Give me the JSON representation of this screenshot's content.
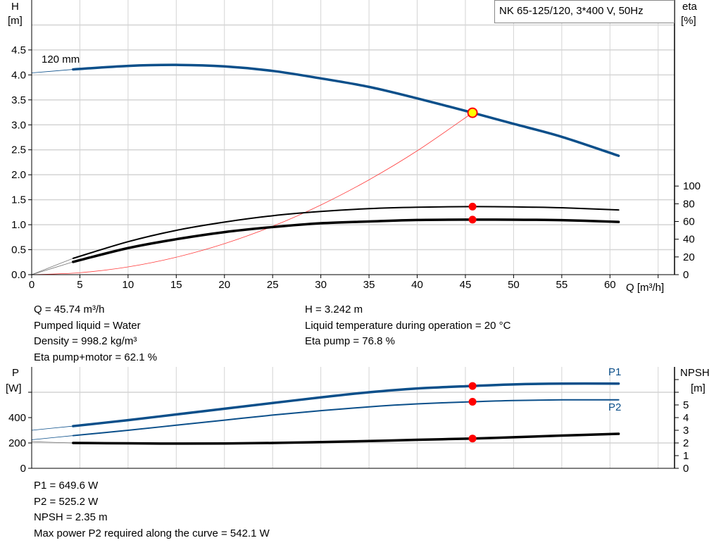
{
  "title": "NK 65-125/120, 3*400 V, 50Hz",
  "curve_label": "120 mm",
  "operating_point_info": {
    "left": [
      "Q = 45.74 m³/h",
      "Pumped liquid = Water",
      "Density = 998.2 kg/m³",
      "Eta pump+motor = 62.1 %"
    ],
    "right": [
      "H = 3.242 m",
      "Liquid temperature during operation = 20 °C",
      "Eta pump = 76.8 %"
    ]
  },
  "power_info": [
    "P1 = 649.6 W",
    "P2 = 525.2 W",
    "NPSH = 2.35 m",
    "Max power P2 required along the curve = 542.1 W"
  ],
  "colors": {
    "head": "#0b4f8a",
    "efficiency": "#000000",
    "system_curve": "#ff3b3b",
    "duty_point": "#ff0000",
    "duty_point_fill_head": "#ffff00",
    "grid": "#d4d4d4"
  },
  "chart_data": [
    {
      "type": "line",
      "title": "NK 65-125/120, 3*400 V, 50Hz",
      "xlabel": "Q [m³/h]",
      "ylabel": "H\n[m]",
      "ylabel_left_lines": [
        "H",
        "[m]"
      ],
      "ylabel_right_lines": [
        "eta",
        "[%]"
      ],
      "xlim": [
        0,
        66.7
      ],
      "ylim": [
        0,
        5.5
      ],
      "ylim_right": [
        0,
        310
      ],
      "xticks": [
        "0",
        "5",
        "10",
        "15",
        "20",
        "25",
        "30",
        "35",
        "40",
        "45",
        "50",
        "55",
        "60"
      ],
      "yticks": [
        "0.0",
        "0.5",
        "1.0",
        "1.5",
        "2.0",
        "2.5",
        "3.0",
        "3.5",
        "4.0",
        "4.5"
      ],
      "yticks_right": [
        "0",
        "20",
        "40",
        "60",
        "80",
        "100"
      ],
      "grid": true,
      "series": [
        {
          "name": "120 mm",
          "axis": "H",
          "x": [
            0,
            4.3,
            10,
            15,
            20,
            25,
            30,
            35,
            40,
            45.74,
            50,
            55,
            60.9
          ],
          "y": [
            4.04,
            4.11,
            4.18,
            4.2,
            4.17,
            4.08,
            3.93,
            3.76,
            3.53,
            3.242,
            3.02,
            2.76,
            2.38
          ]
        },
        {
          "axis": "eta",
          "x": [
            0,
            4.3,
            10,
            15,
            20,
            25,
            30,
            35,
            40,
            45.74,
            50,
            55,
            60.9
          ],
          "y": [
            0,
            18.4,
            37.2,
            50,
            59.3,
            66.5,
            71.3,
            74.5,
            76.1,
            76.8,
            76.5,
            75.5,
            73
          ]
        },
        {
          "axis": "eta",
          "x": [
            0,
            4.3,
            10,
            15,
            20,
            25,
            30,
            35,
            40,
            45.74,
            50,
            55,
            60.9
          ],
          "y": [
            0,
            14.4,
            30,
            40,
            48,
            53.7,
            58,
            60,
            61.7,
            62.1,
            62,
            61.5,
            59.5
          ]
        },
        {
          "axis": "H",
          "kind": "system_curve",
          "x": [
            0,
            5,
            10,
            15,
            20,
            25,
            30,
            35,
            40,
            45.74
          ],
          "y": [
            0,
            0.039,
            0.155,
            0.349,
            0.62,
            0.969,
            1.395,
            1.899,
            2.48,
            3.242
          ]
        }
      ],
      "duty_points": [
        {
          "axis": "H",
          "x": 45.74,
          "y": 3.242
        },
        {
          "axis": "eta",
          "x": 45.74,
          "y": 76.8
        },
        {
          "axis": "eta",
          "x": 45.74,
          "y": 62.1
        }
      ]
    },
    {
      "type": "line",
      "ylabel_left_lines": [
        "P",
        "[W]"
      ],
      "ylabel_right_lines": [
        "NPSH",
        "[m]"
      ],
      "xlim": [
        0,
        66.7
      ],
      "ylim": [
        0,
        800
      ],
      "ylim_right": [
        0,
        8
      ],
      "yticks": [
        "0",
        "200",
        "400"
      ],
      "yticks_right": [
        "0",
        "1",
        "2",
        "3",
        "4",
        "5"
      ],
      "grid": true,
      "series": [
        {
          "name": "P1",
          "axis": "P",
          "x": [
            0,
            4.3,
            10,
            15,
            20,
            25,
            30,
            35,
            40,
            45.74,
            50,
            55,
            60.9
          ],
          "y": [
            300,
            333,
            380,
            425,
            470,
            515,
            560,
            600,
            630,
            649.6,
            662,
            668,
            668
          ]
        },
        {
          "name": "P2",
          "axis": "P",
          "x": [
            0,
            4.3,
            10,
            15,
            20,
            25,
            30,
            35,
            40,
            45.74,
            50,
            55,
            60.9
          ],
          "y": [
            225,
            258,
            300,
            340,
            380,
            420,
            455,
            485,
            508,
            525.2,
            535,
            540,
            540
          ]
        },
        {
          "axis": "NPSH",
          "x": [
            0,
            4.3,
            10,
            15,
            20,
            25,
            30,
            35,
            40,
            45.74,
            50,
            55,
            60.9
          ],
          "y": [
            2.1,
            2.0,
            1.97,
            1.95,
            1.96,
            2.0,
            2.07,
            2.15,
            2.25,
            2.35,
            2.45,
            2.58,
            2.72
          ]
        }
      ],
      "duty_points": [
        {
          "axis": "P",
          "x": 45.74,
          "y": 649.6
        },
        {
          "axis": "P",
          "x": 45.74,
          "y": 525.2
        },
        {
          "axis": "NPSH",
          "x": 45.74,
          "y": 2.35
        }
      ]
    }
  ]
}
